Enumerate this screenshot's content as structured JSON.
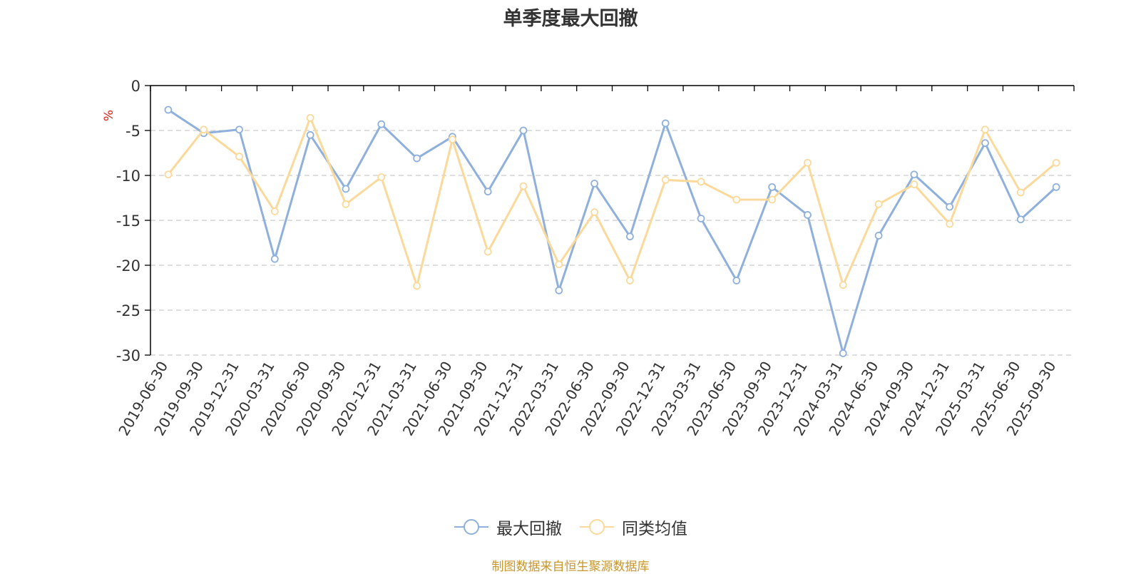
{
  "title": "单季度最大回撤",
  "source": "制图数据来自恒生聚源数据库",
  "colors": {
    "series1": "#8fb0dc",
    "series2": "#fbd99a",
    "axis": "#000000",
    "grid": "#cccccc",
    "unit": "#e0211b",
    "source": "#c8962a"
  },
  "chart_data": {
    "type": "line",
    "title": "单季度最大回撤",
    "ylabel": "%",
    "ylim": [
      -30,
      0
    ],
    "yticks": [
      0,
      -5,
      -10,
      -15,
      -20,
      -25,
      -30
    ],
    "grid": "horizontal-dashed",
    "legend_position": "bottom",
    "categories": [
      "2019-06-30",
      "2019-09-30",
      "2019-12-31",
      "2020-03-31",
      "2020-06-30",
      "2020-09-30",
      "2020-12-31",
      "2021-03-31",
      "2021-06-30",
      "2021-09-30",
      "2021-12-31",
      "2022-03-31",
      "2022-06-30",
      "2022-09-30",
      "2022-12-31",
      "2023-03-31",
      "2023-06-30",
      "2023-09-30",
      "2023-12-31",
      "2024-03-31",
      "2024-06-30",
      "2024-09-30",
      "2024-12-31",
      "2025-03-31",
      "2025-06-30",
      "2025-09-30"
    ],
    "series": [
      {
        "name": "最大回撤",
        "color": "#8fb0dc",
        "values": [
          -2.7,
          -5.3,
          -4.9,
          -19.3,
          -5.5,
          -11.5,
          -4.3,
          -8.1,
          -5.7,
          -11.8,
          -5.0,
          -22.8,
          -10.9,
          -16.8,
          -4.2,
          -14.8,
          -21.7,
          -11.3,
          -14.4,
          -29.8,
          -16.7,
          -9.9,
          -13.5,
          -6.4,
          -14.9,
          -11.3
        ]
      },
      {
        "name": "同类均值",
        "color": "#fbd99a",
        "values": [
          -9.9,
          -4.9,
          -7.9,
          -14.0,
          -3.6,
          -13.2,
          -10.2,
          -22.3,
          -6.0,
          -18.5,
          -11.2,
          -19.9,
          -14.1,
          -21.7,
          -10.5,
          -10.7,
          -12.7,
          -12.7,
          -8.6,
          -22.2,
          -13.2,
          -11.0,
          -15.4,
          -4.9,
          -11.9,
          -8.6
        ]
      }
    ]
  }
}
